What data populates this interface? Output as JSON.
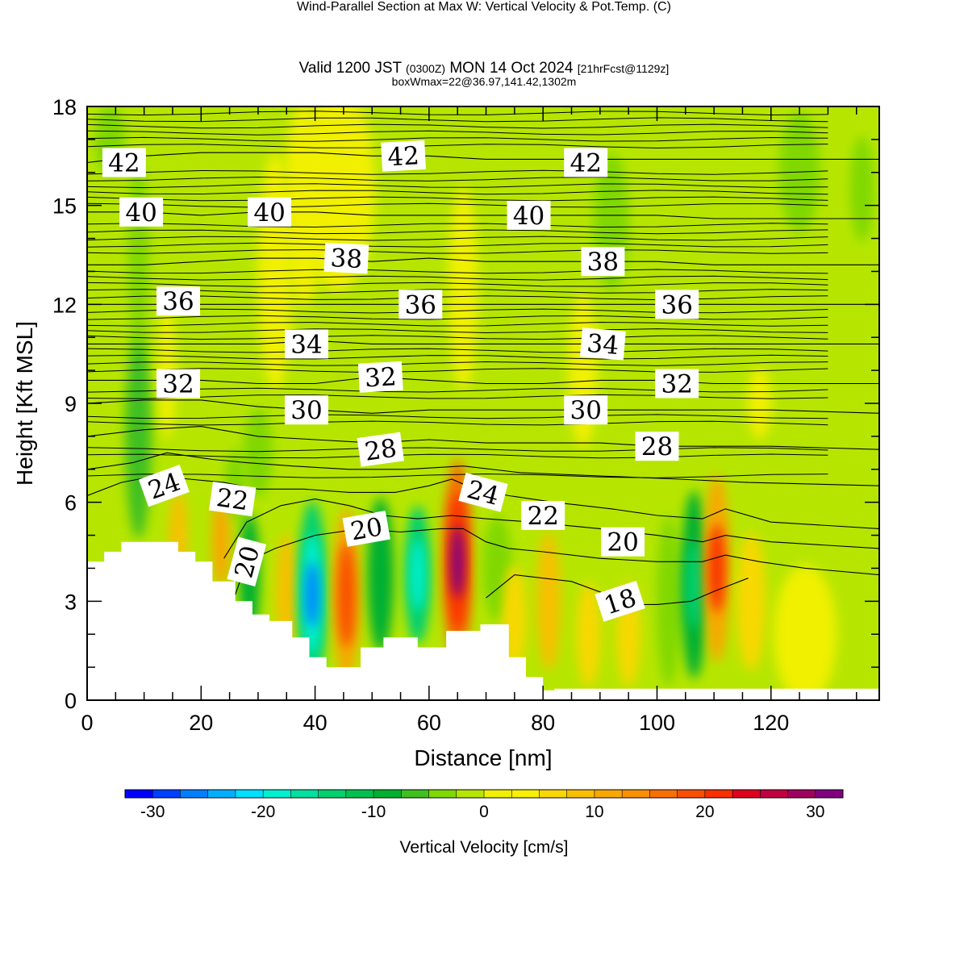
{
  "title": {
    "main": "Wind-Parallel Section at Max W: Vertical Velocity & Pot.Temp.",
    "main_suffix": "(C)",
    "valid_prefix": "Valid 1200 JST",
    "valid_utc": "(0300Z)",
    "valid_date": "MON 14 Oct 2024",
    "valid_fcst": "[21hrFcst@1129z]",
    "box_wmax": "boxWmax=22@36.97,141.42,1302m"
  },
  "colors": {
    "background_field": "#b6e600",
    "terrain_fill": "#ffffff",
    "contour_line": "#000000"
  },
  "chart_data": {
    "type": "heatmap",
    "xlabel": "Distance [nm]",
    "ylabel": "Height [Kft MSL]",
    "xlim": [
      0,
      139
    ],
    "ylim": [
      0,
      18
    ],
    "x_ticks": [
      0,
      20,
      40,
      60,
      80,
      100,
      120
    ],
    "y_ticks": [
      0,
      3,
      6,
      9,
      12,
      15,
      18
    ],
    "grid": false,
    "shaded_field": "Vertical Velocity [cm/s]",
    "colorbar": {
      "title": "Vertical Velocity [cm/s]",
      "min": -32.5,
      "max": 32.5,
      "step": 2.5,
      "tick_values": [
        -30,
        -20,
        -10,
        0,
        10,
        20,
        30
      ],
      "tick_labels": [
        "-30",
        "-20",
        "-10",
        "0",
        "10",
        "20",
        "30"
      ],
      "colors": [
        "#0000ff",
        "#0040ff",
        "#0080ff",
        "#00b0ff",
        "#00e0ff",
        "#00f0d0",
        "#00e0a0",
        "#00d070",
        "#00c050",
        "#00b030",
        "#40c020",
        "#80d800",
        "#b6e600",
        "#f0f000",
        "#f8f000",
        "#f8d800",
        "#f8c000",
        "#f8a800",
        "#f89000",
        "#f87000",
        "#f85000",
        "#f83000",
        "#e00020",
        "#c00040",
        "#a00060",
        "#800080"
      ]
    },
    "terrain_profile": {
      "x": [
        0,
        3,
        3,
        6,
        6,
        16,
        16,
        19,
        19,
        22,
        22,
        26,
        26,
        29,
        29,
        32,
        32,
        36,
        36,
        39,
        39,
        42,
        42,
        48,
        48,
        52,
        52,
        58,
        58,
        63,
        63,
        69,
        69,
        74,
        74,
        77,
        77,
        80,
        80,
        82,
        82,
        139
      ],
      "y": [
        4.2,
        4.2,
        4.5,
        4.5,
        4.8,
        4.8,
        4.5,
        4.5,
        4.2,
        4.2,
        3.6,
        3.6,
        3.0,
        3.0,
        2.6,
        2.6,
        2.4,
        2.4,
        1.9,
        1.9,
        1.3,
        1.3,
        1.0,
        1.0,
        1.6,
        1.6,
        1.9,
        1.9,
        1.6,
        1.6,
        2.1,
        2.1,
        2.3,
        2.3,
        1.3,
        1.3,
        0.7,
        0.7,
        0.3,
        0.3,
        0.35,
        0.35
      ]
    },
    "velocity_cells": [
      {
        "x": 9,
        "y": 8.0,
        "w": 3.5,
        "h": 6.0,
        "value": -7
      },
      {
        "x": 9,
        "y": 13.5,
        "w": 2.5,
        "h": 5.5,
        "value": -4
      },
      {
        "x": 4,
        "y": 17.0,
        "w": 4,
        "h": 2,
        "value": -4
      },
      {
        "x": 38,
        "y": 15.0,
        "w": 6,
        "h": 6,
        "value": 2
      },
      {
        "x": 30,
        "y": 7.5,
        "w": 4,
        "h": 2.5,
        "value": -4
      },
      {
        "x": 26,
        "y": 6.5,
        "w": 2.5,
        "h": 2,
        "value": -5
      },
      {
        "x": 16,
        "y": 5.0,
        "w": 2,
        "h": 2.5,
        "value": 8
      },
      {
        "x": 23.5,
        "y": 4.8,
        "w": 2,
        "h": 2.5,
        "value": 10
      },
      {
        "x": 28.5,
        "y": 3.8,
        "w": 2.5,
        "h": 3.5,
        "value": -8
      },
      {
        "x": 35,
        "y": 3.2,
        "w": 2.5,
        "h": 3.5,
        "value": 8
      },
      {
        "x": 39.5,
        "y": 3.2,
        "w": 4.0,
        "h": 5.5,
        "value": -14
      },
      {
        "x": 39.5,
        "y": 3.2,
        "w": 2.5,
        "h": 3.5,
        "value": -20
      },
      {
        "x": 39.5,
        "y": 3.2,
        "w": 1.2,
        "h": 1.8,
        "value": -26
      },
      {
        "x": 45.5,
        "y": 3.2,
        "w": 3.5,
        "h": 5.0,
        "value": 12
      },
      {
        "x": 45.5,
        "y": 3.2,
        "w": 2.0,
        "h": 3.0,
        "value": 18
      },
      {
        "x": 51.5,
        "y": 3.8,
        "w": 3.5,
        "h": 4.5,
        "value": -8
      },
      {
        "x": 58.0,
        "y": 3.8,
        "w": 3.5,
        "h": 4.0,
        "value": -14
      },
      {
        "x": 58.0,
        "y": 3.8,
        "w": 1.5,
        "h": 2.0,
        "value": -20
      },
      {
        "x": 65.0,
        "y": 4.2,
        "w": 4.0,
        "h": 6.0,
        "value": 16
      },
      {
        "x": 65.0,
        "y": 4.2,
        "w": 2.5,
        "h": 4.0,
        "value": 22
      },
      {
        "x": 65.0,
        "y": 4.2,
        "w": 1.2,
        "h": 2.0,
        "value": 30
      },
      {
        "x": 72.0,
        "y": 4.0,
        "w": 4,
        "h": 3,
        "value": -4
      },
      {
        "x": 75.0,
        "y": 2.5,
        "w": 3,
        "h": 3,
        "value": 6
      },
      {
        "x": 81.0,
        "y": 3.0,
        "w": 3,
        "h": 4,
        "value": 8
      },
      {
        "x": 88.0,
        "y": 2.0,
        "w": 3,
        "h": 3,
        "value": 6
      },
      {
        "x": 95.0,
        "y": 2.0,
        "w": 3,
        "h": 3,
        "value": 6
      },
      {
        "x": 102.0,
        "y": 3.0,
        "w": 3,
        "h": 5,
        "value": -4
      },
      {
        "x": 106.5,
        "y": 3.5,
        "w": 3.5,
        "h": 5.5,
        "value": -10
      },
      {
        "x": 106.5,
        "y": 3.5,
        "w": 1.8,
        "h": 2.5,
        "value": -15
      },
      {
        "x": 110.5,
        "y": 4.0,
        "w": 3.5,
        "h": 5.5,
        "value": 12
      },
      {
        "x": 110.5,
        "y": 4.0,
        "w": 1.8,
        "h": 2.5,
        "value": 22
      },
      {
        "x": 116.5,
        "y": 3.0,
        "w": 4,
        "h": 4,
        "value": 6
      },
      {
        "x": 126,
        "y": 2.0,
        "w": 10,
        "h": 4,
        "value": 2
      },
      {
        "x": 125,
        "y": 16.0,
        "w": 6,
        "h": 3.5,
        "value": -4
      },
      {
        "x": 136,
        "y": 15.5,
        "w": 3,
        "h": 3,
        "value": -4
      },
      {
        "x": 44,
        "y": 15.5,
        "w": 12,
        "h": 6,
        "value": 1
      },
      {
        "x": 87,
        "y": 10.0,
        "w": 4,
        "h": 4.5,
        "value": 2
      },
      {
        "x": 118,
        "y": 9.0,
        "w": 3,
        "h": 2,
        "value": 2
      },
      {
        "x": 33,
        "y": 13.0,
        "w": 5,
        "h": 7,
        "value": 1
      },
      {
        "x": 14,
        "y": 10.0,
        "w": 2,
        "h": 4,
        "value": 2
      },
      {
        "x": 66,
        "y": 12.5,
        "w": 4,
        "h": 6,
        "value": 1
      },
      {
        "x": 92,
        "y": 14.5,
        "w": 5,
        "h": 4,
        "value": -3
      }
    ],
    "theta_contours": [
      {
        "level": 18,
        "x": [
          70,
          75,
          85,
          96,
          100,
          106,
          110,
          116
        ],
        "y": [
          3.1,
          3.8,
          3.6,
          2.9,
          2.9,
          3.0,
          3.3,
          3.7
        ]
      },
      {
        "level": 20,
        "x": [
          26,
          28,
          33,
          40,
          48,
          55,
          62,
          66,
          70,
          74,
          80,
          90,
          100,
          108,
          112,
          118,
          126,
          139
        ],
        "y": [
          3.2,
          4.2,
          4.6,
          5.0,
          5.2,
          5.1,
          5.2,
          5.2,
          4.8,
          4.6,
          4.5,
          4.3,
          4.2,
          4.2,
          4.4,
          4.2,
          4.0,
          3.8
        ]
      },
      {
        "level": 22,
        "x": [
          24,
          28,
          34,
          40,
          46,
          52,
          58,
          64,
          70,
          78,
          90,
          100,
          108,
          112,
          120,
          139
        ],
        "y": [
          4.3,
          5.4,
          5.9,
          6.1,
          5.9,
          5.6,
          5.5,
          5.6,
          5.5,
          5.4,
          5.2,
          5.0,
          4.8,
          5.0,
          4.8,
          4.6
        ]
      },
      {
        "level": 24,
        "x": [
          0,
          6,
          12,
          18,
          24,
          30,
          38,
          46,
          54,
          60,
          64,
          68,
          74,
          82,
          92,
          100,
          108,
          112,
          120,
          139
        ],
        "y": [
          6.2,
          6.6,
          6.8,
          6.7,
          6.6,
          6.4,
          6.4,
          6.3,
          6.3,
          6.5,
          6.7,
          6.4,
          6.2,
          6.0,
          5.8,
          5.6,
          5.5,
          5.8,
          5.4,
          5.2
        ]
      },
      {
        "level": 26,
        "x": [
          0,
          8,
          14,
          22,
          28,
          36,
          46,
          56,
          66,
          76,
          90,
          104,
          116,
          139
        ],
        "y": [
          7.0,
          7.2,
          7.5,
          7.3,
          7.2,
          7.1,
          7.0,
          7.0,
          7.1,
          6.9,
          6.8,
          6.7,
          6.6,
          6.5
        ]
      },
      {
        "level": 28,
        "x": [
          0,
          10,
          20,
          30,
          40,
          50,
          60,
          70,
          80,
          90,
          100,
          110,
          120,
          139
        ],
        "y": [
          8.0,
          8.2,
          8.3,
          8.0,
          7.9,
          7.8,
          7.9,
          7.8,
          7.8,
          7.8,
          7.7,
          7.7,
          7.7,
          7.6
        ]
      },
      {
        "level": 30,
        "x": [
          0,
          10,
          20,
          30,
          40,
          50,
          60,
          70,
          80,
          90,
          100,
          110,
          120,
          139
        ],
        "y": [
          9.0,
          9.1,
          9.1,
          8.9,
          8.8,
          8.7,
          8.8,
          8.8,
          8.8,
          8.8,
          8.8,
          8.8,
          8.8,
          8.7
        ]
      },
      {
        "level": 32,
        "x": [
          0,
          10,
          20,
          30,
          40,
          50,
          60,
          70,
          80,
          90,
          100,
          110,
          120,
          139
        ],
        "y": [
          9.7,
          9.7,
          9.7,
          9.6,
          9.6,
          9.8,
          9.7,
          9.6,
          9.6,
          9.7,
          9.7,
          9.6,
          9.6,
          9.6
        ]
      },
      {
        "level": 34,
        "x": [
          0,
          10,
          20,
          30,
          40,
          50,
          60,
          70,
          80,
          90,
          100,
          110,
          120,
          139
        ],
        "y": [
          10.8,
          10.8,
          10.8,
          10.8,
          10.9,
          10.8,
          10.8,
          10.8,
          10.8,
          10.8,
          10.8,
          10.8,
          10.8,
          10.8
        ]
      },
      {
        "level": 36,
        "x": [
          0,
          10,
          20,
          30,
          40,
          50,
          60,
          70,
          80,
          90,
          100,
          110,
          120,
          139
        ],
        "y": [
          12.0,
          12.0,
          12.0,
          12.0,
          12.0,
          12.0,
          12.0,
          12.0,
          12.0,
          12.0,
          12.0,
          12.0,
          12.0,
          12.0
        ]
      },
      {
        "level": 38,
        "x": [
          0,
          10,
          20,
          30,
          40,
          50,
          60,
          70,
          80,
          90,
          100,
          110,
          120,
          139
        ],
        "y": [
          13.2,
          13.2,
          13.3,
          13.4,
          13.4,
          13.3,
          13.4,
          13.3,
          13.3,
          13.3,
          13.3,
          13.2,
          13.2,
          13.2
        ]
      },
      {
        "level": 40,
        "x": [
          0,
          10,
          20,
          30,
          40,
          50,
          60,
          70,
          80,
          90,
          100,
          110,
          120,
          139
        ],
        "y": [
          14.8,
          14.8,
          14.7,
          14.8,
          14.8,
          14.7,
          14.7,
          14.7,
          14.7,
          14.7,
          14.7,
          14.6,
          14.6,
          14.6
        ]
      },
      {
        "level": 42,
        "x": [
          0,
          10,
          20,
          30,
          40,
          50,
          60,
          70,
          80,
          90,
          100,
          110,
          120,
          139
        ],
        "y": [
          16.3,
          16.5,
          16.6,
          16.6,
          16.6,
          16.5,
          16.5,
          16.4,
          16.4,
          16.4,
          16.4,
          16.4,
          16.4,
          16.4
        ]
      }
    ],
    "theta_minor_contour_heights": [
      6.8,
      7.4,
      7.6,
      8.4,
      8.6,
      9.2,
      9.4,
      10.0,
      10.2,
      10.4,
      10.6,
      11.0,
      11.2,
      11.4,
      11.6,
      11.8,
      12.2,
      12.4,
      12.6,
      12.8,
      13.0,
      13.6,
      13.8,
      14.0,
      14.2,
      14.4,
      15.0,
      15.2,
      15.4,
      15.6,
      15.8,
      16.0,
      16.8,
      17.0,
      17.2,
      17.4,
      17.6,
      17.8
    ],
    "contour_labels": [
      {
        "text": "42",
        "x": 6.5,
        "y": 16.3,
        "angle": 0
      },
      {
        "text": "42",
        "x": 55.5,
        "y": 16.5,
        "angle": -3
      },
      {
        "text": "42",
        "x": 87.5,
        "y": 16.3,
        "angle": 0
      },
      {
        "text": "40",
        "x": 9.5,
        "y": 14.8,
        "angle": 0
      },
      {
        "text": "40",
        "x": 32.0,
        "y": 14.8,
        "angle": 0
      },
      {
        "text": "40",
        "x": 77.5,
        "y": 14.7,
        "angle": 0
      },
      {
        "text": "38",
        "x": 45.5,
        "y": 13.4,
        "angle": 3
      },
      {
        "text": "38",
        "x": 90.5,
        "y": 13.3,
        "angle": 0
      },
      {
        "text": "36",
        "x": 16.0,
        "y": 12.1,
        "angle": 0
      },
      {
        "text": "36",
        "x": 58.5,
        "y": 12.0,
        "angle": 0
      },
      {
        "text": "36",
        "x": 103.5,
        "y": 12.0,
        "angle": 0
      },
      {
        "text": "34",
        "x": 38.5,
        "y": 10.8,
        "angle": 0
      },
      {
        "text": "34",
        "x": 90.5,
        "y": 10.8,
        "angle": 5
      },
      {
        "text": "32",
        "x": 16.0,
        "y": 9.6,
        "angle": 0
      },
      {
        "text": "32",
        "x": 51.5,
        "y": 9.8,
        "angle": -3
      },
      {
        "text": "32",
        "x": 103.5,
        "y": 9.6,
        "angle": 0
      },
      {
        "text": "30",
        "x": 38.5,
        "y": 8.8,
        "angle": 0
      },
      {
        "text": "30",
        "x": 87.5,
        "y": 8.8,
        "angle": 0
      },
      {
        "text": "28",
        "x": 51.5,
        "y": 7.6,
        "angle": -8
      },
      {
        "text": "28",
        "x": 100.0,
        "y": 7.7,
        "angle": 0
      },
      {
        "text": "24",
        "x": 13.5,
        "y": 6.5,
        "angle": -20
      },
      {
        "text": "24",
        "x": 69.5,
        "y": 6.3,
        "angle": 15
      },
      {
        "text": "22",
        "x": 25.5,
        "y": 6.1,
        "angle": 8
      },
      {
        "text": "22",
        "x": 80.0,
        "y": 5.6,
        "angle": 0
      },
      {
        "text": "20",
        "x": 28.0,
        "y": 4.2,
        "angle": -75
      },
      {
        "text": "20",
        "x": 49.0,
        "y": 5.2,
        "angle": -10
      },
      {
        "text": "20",
        "x": 94.0,
        "y": 4.8,
        "angle": 0
      },
      {
        "text": "18",
        "x": 93.5,
        "y": 3.0,
        "angle": -18
      }
    ]
  }
}
